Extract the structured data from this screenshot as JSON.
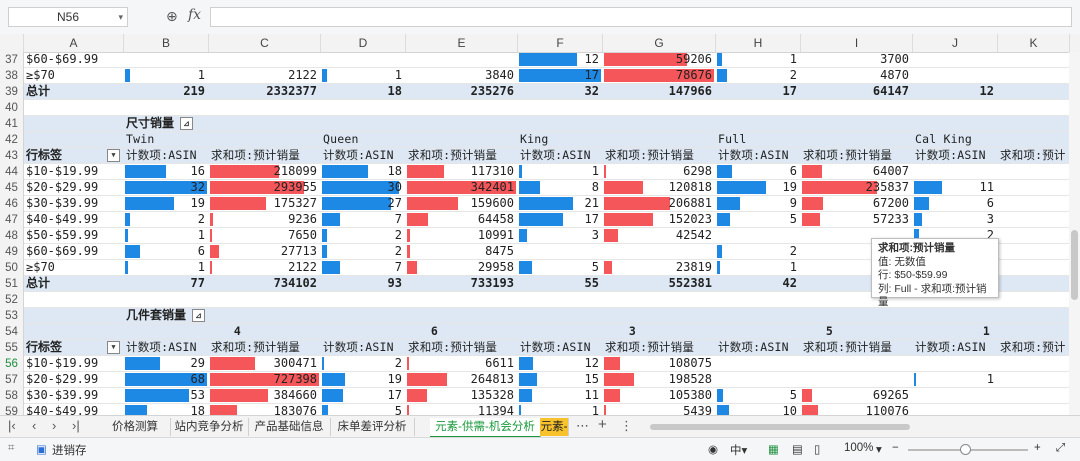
{
  "formula_bar": {
    "name_box": "N56",
    "fx_label": "fx",
    "formula": ""
  },
  "columns": [
    "A",
    "B",
    "C",
    "D",
    "E",
    "F",
    "G",
    "H",
    "I",
    "J",
    "K"
  ],
  "rows": [
    {
      "n": "37",
      "label": "$60-$69.99",
      "F": "12",
      "G": "59206",
      "H": "1",
      "I": "3700"
    },
    {
      "n": "38",
      "label": "≥$70",
      "B": "1",
      "C": "2122",
      "D": "1",
      "E": "3840",
      "F": "17",
      "G": "78676",
      "H": "2",
      "I": "4870"
    },
    {
      "n": "39",
      "label": "总计",
      "B": "219",
      "C": "2332377",
      "D": "18",
      "E": "235276",
      "F": "32",
      "G": "147966",
      "H": "17",
      "I": "64147",
      "J": "12"
    },
    {
      "n": "40"
    },
    {
      "n": "41",
      "title": "尺寸销量"
    },
    {
      "n": "42",
      "groups": [
        "Twin",
        "Queen",
        "King",
        "Full",
        "Cal King"
      ]
    },
    {
      "n": "43",
      "row_label": "行标签",
      "headers": [
        "计数项:ASIN",
        "求和项:预计销量",
        "计数项:ASIN",
        "求和项:预计销量",
        "计数项:ASIN",
        "求和项:预计销量",
        "计数项:ASIN",
        "求和项:预计销量",
        "计数项:ASIN",
        "求和项:预计"
      ]
    },
    {
      "n": "44",
      "label": "$10-$19.99",
      "B": "16",
      "C": "218099",
      "D": "18",
      "E": "117310",
      "F": "1",
      "G": "6298",
      "H": "6",
      "I": "64007"
    },
    {
      "n": "45",
      "label": "$20-$29.99",
      "B": "32",
      "C": "293955",
      "D": "30",
      "E": "342401",
      "F": "8",
      "G": "120818",
      "H": "19",
      "I": "235837",
      "J": "11"
    },
    {
      "n": "46",
      "label": "$30-$39.99",
      "B": "19",
      "C": "175327",
      "D": "27",
      "E": "159600",
      "F": "21",
      "G": "206881",
      "H": "9",
      "I": "67200",
      "J": "6"
    },
    {
      "n": "47",
      "label": "$40-$49.99",
      "B": "2",
      "C": "9236",
      "D": "7",
      "E": "64458",
      "F": "17",
      "G": "152023",
      "H": "5",
      "I": "57233",
      "J": "3"
    },
    {
      "n": "48",
      "label": "$50-$59.99",
      "B": "1",
      "C": "7650",
      "D": "2",
      "E": "10991",
      "F": "3",
      "G": "42542",
      "J": "2"
    },
    {
      "n": "49",
      "label": "$60-$69.99",
      "B": "6",
      "C": "27713",
      "D": "2",
      "E": "8475",
      "H": "2"
    },
    {
      "n": "50",
      "label": "≥$70",
      "B": "1",
      "C": "2122",
      "D": "7",
      "E": "29958",
      "F": "5",
      "G": "23819",
      "H": "1"
    },
    {
      "n": "51",
      "label": "总计",
      "B": "77",
      "C": "734102",
      "D": "93",
      "E": "733193",
      "F": "55",
      "G": "552381",
      "H": "42"
    },
    {
      "n": "52"
    },
    {
      "n": "53",
      "title": "几件套销量"
    },
    {
      "n": "54",
      "groups": [
        "4",
        "6",
        "3",
        "5",
        "1"
      ]
    },
    {
      "n": "55",
      "row_label": "行标签",
      "headers": [
        "计数项:ASIN",
        "求和项:预计销量",
        "计数项:ASIN",
        "求和项:预计销量",
        "计数项:ASIN",
        "求和项:预计销量",
        "计数项:ASIN",
        "求和项:预计销量",
        "计数项:ASIN",
        "求和项:预计"
      ]
    },
    {
      "n": "56",
      "label": "$10-$19.99",
      "B": "29",
      "C": "300471",
      "D": "2",
      "E": "6611",
      "F": "12",
      "G": "108075"
    },
    {
      "n": "57",
      "label": "$20-$29.99",
      "B": "68",
      "C": "727398",
      "D": "19",
      "E": "264813",
      "F": "15",
      "G": "198528",
      "J": "1"
    },
    {
      "n": "58",
      "label": "$30-$39.99",
      "B": "53",
      "C": "384660",
      "D": "17",
      "E": "135328",
      "F": "11",
      "G": "105380",
      "H": "5",
      "I": "69265"
    },
    {
      "n": "59",
      "label": "$40-$49.99",
      "B": "18",
      "C": "183076",
      "D": "5",
      "E": "11394",
      "F": "1",
      "G": "5439",
      "H": "10",
      "I": "110076"
    }
  ],
  "tooltip": {
    "title": "求和项:预计销量",
    "line1": "值: 无数值",
    "line2": "行: $50-$59.99",
    "line3": "列: Full - 求和项:预计销量"
  },
  "sheet_tabs": [
    "价格测算",
    "站内竞争分析",
    "产品基础信息",
    "床单差评分析",
    "元素-供需-机会分析",
    "元素-"
  ],
  "status": {
    "app": "进销存",
    "zoom": "100%"
  },
  "colors": {
    "bar_blue": "#1e88e5",
    "bar_red": "#f4565a",
    "band": "#dde8f4",
    "active_tab": "#1a9a3d"
  }
}
